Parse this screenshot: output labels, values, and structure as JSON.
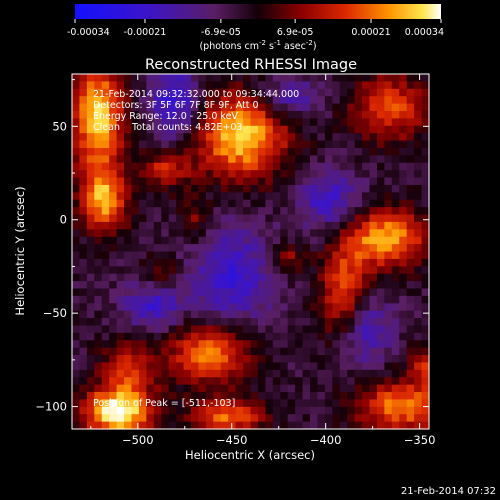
{
  "chart_data": {
    "type": "heatmap",
    "title": "Reconstructed RHESSI Image",
    "xlabel": "Heliocentric X (arcsec)",
    "ylabel": "Heliocentric Y (arcsec)",
    "xlim": [
      -535,
      -345
    ],
    "ylim": [
      -112,
      78
    ],
    "xticks": [
      -500,
      -450,
      -400,
      -350
    ],
    "yticks": [
      -100,
      -50,
      0,
      50
    ],
    "colorbar": {
      "ticks": [
        "-0.00034",
        "-0.00021",
        "-6.9e-05",
        "6.9e-05",
        "0.00021",
        "0.00034"
      ],
      "tick_values": [
        -0.00034,
        -0.00021,
        -6.9e-05,
        6.9e-05,
        0.00021,
        0.00034
      ],
      "label_main": "(photons cm",
      "label_exp1": "-2",
      "label_mid": " s",
      "label_exp2": "-1",
      "label_tail": " asec",
      "label_exp3": "-2",
      "label_end": ")",
      "range": [
        -0.00034,
        0.00034
      ]
    },
    "annotations": [
      "21-Feb-2014 09:32:32.000 to 09:34:44.000",
      "Detectors: 3F 5F 6F 7F 8F 9F, Att 0",
      "Energy Range: 12.0 - 25.0 keV",
      "Clean    Total counts: 4.82E+03"
    ],
    "peak_label": "Position of Peak = [-511,-103]",
    "peak": {
      "x": -511,
      "y": -103
    },
    "grid": false,
    "sources": [
      {
        "x": -521,
        "y": 55,
        "sx": 10,
        "sy": 22,
        "amp": 1.0
      },
      {
        "x": -518,
        "y": 10,
        "sx": 9,
        "sy": 12,
        "amp": 0.85
      },
      {
        "x": -445,
        "y": 45,
        "sx": 17,
        "sy": 16,
        "amp": 1.05
      },
      {
        "x": -485,
        "y": 27,
        "sx": 9,
        "sy": 7,
        "amp": 0.55
      },
      {
        "x": -368,
        "y": -10,
        "sx": 15,
        "sy": 11,
        "amp": 0.95
      },
      {
        "x": -390,
        "y": -40,
        "sx": 9,
        "sy": 18,
        "amp": 0.75
      },
      {
        "x": -365,
        "y": 60,
        "sx": 15,
        "sy": 13,
        "amp": 0.65
      },
      {
        "x": -511,
        "y": -103,
        "sx": 13,
        "sy": 9,
        "amp": 1.2
      },
      {
        "x": -462,
        "y": -72,
        "sx": 15,
        "sy": 11,
        "amp": 0.85
      },
      {
        "x": -505,
        "y": -80,
        "sx": 10,
        "sy": 10,
        "amp": 0.6
      },
      {
        "x": -452,
        "y": -105,
        "sx": 14,
        "sy": 7,
        "amp": 0.75
      },
      {
        "x": -360,
        "y": -100,
        "sx": 17,
        "sy": 10,
        "amp": 0.8
      },
      {
        "x": -345,
        "y": -78,
        "sx": 7,
        "sy": 8,
        "amp": 0.55
      },
      {
        "x": -420,
        "y": -20,
        "sx": 6,
        "sy": 6,
        "amp": 0.4
      },
      {
        "x": -488,
        "y": -30,
        "sx": 7,
        "sy": 7,
        "amp": 0.4
      },
      {
        "x": -470,
        "y": 0,
        "sx": 6,
        "sy": 8,
        "amp": 0.35
      }
    ],
    "negative_sources": [
      {
        "x": -480,
        "y": 62,
        "sx": 10,
        "sy": 14,
        "amp": 0.6
      },
      {
        "x": -450,
        "y": -30,
        "sx": 15,
        "sy": 18,
        "amp": 0.55
      },
      {
        "x": -398,
        "y": 10,
        "sx": 12,
        "sy": 12,
        "amp": 0.5
      },
      {
        "x": -380,
        "y": -58,
        "sx": 10,
        "sy": 14,
        "amp": 0.55
      },
      {
        "x": -492,
        "y": -45,
        "sx": 11,
        "sy": 10,
        "amp": 0.5
      },
      {
        "x": -420,
        "y": 65,
        "sx": 12,
        "sy": 8,
        "amp": 0.45
      }
    ]
  },
  "footer": {
    "timestamp": "21-Feb-2014 07:32"
  }
}
